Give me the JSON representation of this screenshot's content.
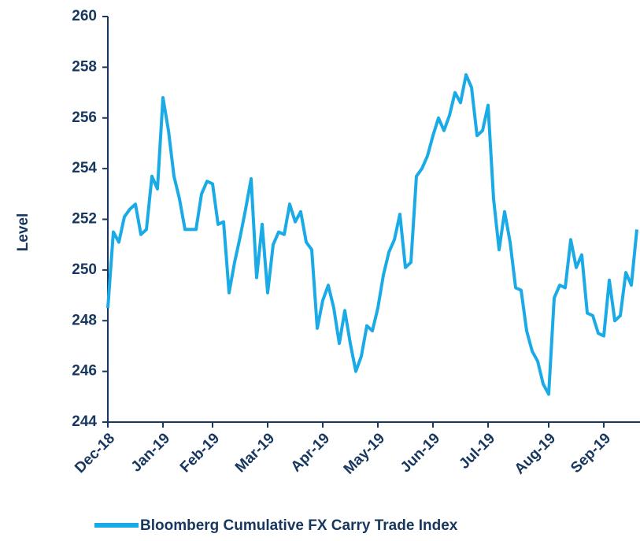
{
  "chart_data": {
    "type": "line",
    "y_label": "Level",
    "categories": [
      "Dec-18",
      null,
      null,
      null,
      null,
      null,
      null,
      null,
      null,
      null,
      "Jan-19",
      null,
      null,
      null,
      null,
      null,
      null,
      null,
      null,
      "Feb-19",
      null,
      null,
      null,
      null,
      null,
      null,
      null,
      null,
      null,
      "Mar-19",
      null,
      null,
      null,
      null,
      null,
      null,
      null,
      null,
      null,
      "Apr-19",
      null,
      null,
      null,
      null,
      null,
      null,
      null,
      null,
      null,
      "May-19",
      null,
      null,
      null,
      null,
      null,
      null,
      null,
      null,
      null,
      "Jun-19",
      null,
      null,
      null,
      null,
      null,
      null,
      null,
      null,
      null,
      "Jul-19",
      null,
      null,
      null,
      null,
      null,
      null,
      null,
      null,
      null,
      null,
      "Aug-19",
      null,
      null,
      null,
      null,
      null,
      null,
      null,
      null,
      null,
      "Sep-19",
      null,
      null,
      null,
      null,
      null,
      null
    ],
    "series": [
      {
        "name": "Bloomberg Cumulative FX Carry Trade Index",
        "color": "#1aabe6",
        "values": [
          248.5,
          251.5,
          251.1,
          252.1,
          252.4,
          252.6,
          251.4,
          251.6,
          253.7,
          253.2,
          256.8,
          255.5,
          253.7,
          252.8,
          251.6,
          251.6,
          251.6,
          253,
          253.5,
          253.4,
          251.8,
          251.9,
          249.1,
          250.3,
          251.3,
          252.4,
          253.6,
          249.7,
          251.8,
          249.1,
          251,
          251.5,
          251.4,
          252.6,
          251.9,
          252.3,
          251.1,
          250.8,
          247.7,
          248.8,
          249.4,
          248.5,
          247.1,
          248.4,
          247.1,
          246,
          246.6,
          247.8,
          247.6,
          248.5,
          249.8,
          250.7,
          251.2,
          252.2,
          250.1,
          250.3,
          253.7,
          254,
          254.5,
          255.3,
          256,
          255.5,
          256.1,
          257,
          256.6,
          257.7,
          257.2,
          255.3,
          255.5,
          256.5,
          252.8,
          250.8,
          252.3,
          251.1,
          249.3,
          249.2,
          247.6,
          246.8,
          246.4,
          245.5,
          245.1,
          248.9,
          249.4,
          249.3,
          251.2,
          250.1,
          250.6,
          248.3,
          248.2,
          247.5,
          247.4,
          249.6,
          248,
          248.2,
          249.9,
          249.4,
          251.6
        ]
      }
    ],
    "ylim": [
      244,
      260
    ],
    "yticks": [
      244,
      246,
      248,
      250,
      252,
      254,
      256,
      258,
      260
    ],
    "legend": "bottom"
  }
}
